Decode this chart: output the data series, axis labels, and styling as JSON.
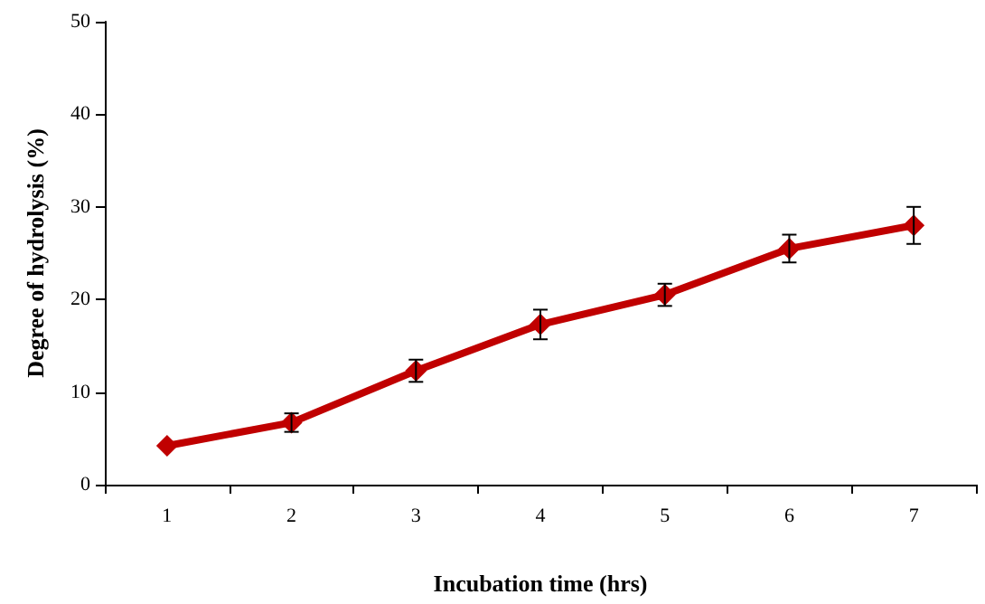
{
  "chart_data": {
    "type": "line",
    "xlabel": "Incubation time (hrs)",
    "ylabel": "Degree of hydrolysis (%)",
    "categories": [
      "1",
      "2",
      "3",
      "4",
      "5",
      "6",
      "7"
    ],
    "series": [
      {
        "color": "#c00000",
        "values": [
          4.2,
          6.7,
          12.3,
          17.3,
          20.5,
          25.5,
          28.0
        ],
        "errors": [
          null,
          1.0,
          1.2,
          1.6,
          1.2,
          1.5,
          2.0
        ]
      }
    ],
    "ylim": [
      0,
      50
    ],
    "yticks": [
      0,
      10,
      20,
      30,
      40,
      50
    ],
    "grid": false,
    "marker": "diamond",
    "line_style": "solid"
  }
}
